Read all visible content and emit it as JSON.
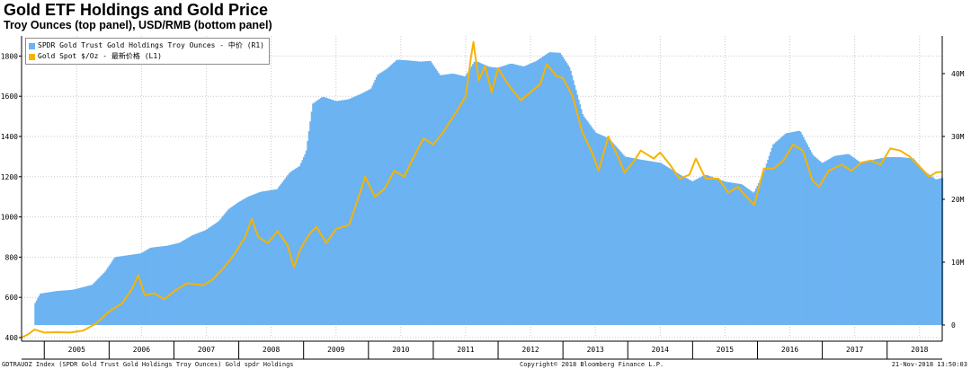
{
  "title": "Gold ETF Holdings and Gold Price",
  "subtitle": "Troy Ounces (top panel), USD/RMB (bottom panel)",
  "footer": {
    "left": "GDTRAUOZ Index (SPDR Gold Trust Gold Holdings Troy Ounces) Gold spdr Holdings",
    "center": "Copyright© 2018 Bloomberg Finance L.P.",
    "right": "21-Nov-2018 13:50:03"
  },
  "colors": {
    "bars": "#6cb3f2",
    "line": "#f5b400",
    "grid": "#c9c9c9"
  },
  "chart_data": {
    "type": "bar",
    "x_label_type": "year",
    "x_tick_labels": [
      "2005",
      "2006",
      "2007",
      "2008",
      "2009",
      "2010",
      "2011",
      "2012",
      "2013",
      "2014",
      "2015",
      "2016",
      "2017",
      "2018"
    ],
    "x_range": [
      2004.65,
      2018.85
    ],
    "y_left": {
      "ticks": [
        "400",
        "600",
        "800",
        "1000",
        "1200",
        "1400",
        "1600",
        "1800"
      ],
      "ylim": [
        400,
        1900
      ]
    },
    "y_right": {
      "ticks": [
        "0",
        "10M",
        "20M",
        "30M",
        "40M"
      ],
      "ylim": [
        -2000000,
        46000000
      ]
    },
    "grid": true,
    "legend_position": "top-left",
    "series": [
      {
        "name": "SPDR Gold Trust Gold Holdings Troy Ounces - 中价 (R1)",
        "type": "bar",
        "axis": "right",
        "points": [
          [
            2004.87,
            3500000
          ],
          [
            2004.95,
            5000000
          ],
          [
            2005.2,
            5400000
          ],
          [
            2005.45,
            5600000
          ],
          [
            2005.75,
            6400000
          ],
          [
            2005.95,
            8500000
          ],
          [
            2006.1,
            10800000
          ],
          [
            2006.3,
            11100000
          ],
          [
            2006.5,
            11400000
          ],
          [
            2006.65,
            12300000
          ],
          [
            2006.9,
            12600000
          ],
          [
            2007.1,
            13100000
          ],
          [
            2007.3,
            14300000
          ],
          [
            2007.5,
            15100000
          ],
          [
            2007.7,
            16500000
          ],
          [
            2007.85,
            18400000
          ],
          [
            2008.0,
            19500000
          ],
          [
            2008.15,
            20400000
          ],
          [
            2008.35,
            21200000
          ],
          [
            2008.6,
            21600000
          ],
          [
            2008.8,
            24300000
          ],
          [
            2008.95,
            25300000
          ],
          [
            2009.05,
            27600000
          ],
          [
            2009.15,
            35200000
          ],
          [
            2009.3,
            36300000
          ],
          [
            2009.5,
            35600000
          ],
          [
            2009.7,
            35900000
          ],
          [
            2009.9,
            36800000
          ],
          [
            2010.05,
            37600000
          ],
          [
            2010.15,
            39800000
          ],
          [
            2010.3,
            40800000
          ],
          [
            2010.45,
            42200000
          ],
          [
            2010.6,
            42100000
          ],
          [
            2010.8,
            41900000
          ],
          [
            2010.95,
            42000000
          ],
          [
            2011.1,
            39700000
          ],
          [
            2011.3,
            40000000
          ],
          [
            2011.5,
            39500000
          ],
          [
            2011.65,
            42000000
          ],
          [
            2011.85,
            41100000
          ],
          [
            2012.0,
            40900000
          ],
          [
            2012.2,
            41600000
          ],
          [
            2012.4,
            41100000
          ],
          [
            2012.6,
            42000000
          ],
          [
            2012.8,
            43400000
          ],
          [
            2012.95,
            43300000
          ],
          [
            2013.1,
            40900000
          ],
          [
            2013.3,
            33400000
          ],
          [
            2013.5,
            30600000
          ],
          [
            2013.7,
            29700000
          ],
          [
            2013.95,
            26800000
          ],
          [
            2014.2,
            26300000
          ],
          [
            2014.5,
            25800000
          ],
          [
            2014.8,
            23900000
          ],
          [
            2015.0,
            22800000
          ],
          [
            2015.2,
            23900000
          ],
          [
            2015.5,
            22800000
          ],
          [
            2015.75,
            22400000
          ],
          [
            2015.95,
            20900000
          ],
          [
            2016.1,
            24100000
          ],
          [
            2016.25,
            28700000
          ],
          [
            2016.45,
            30500000
          ],
          [
            2016.65,
            30900000
          ],
          [
            2016.85,
            27000000
          ],
          [
            2017.0,
            25700000
          ],
          [
            2017.2,
            26900000
          ],
          [
            2017.4,
            27200000
          ],
          [
            2017.6,
            25700000
          ],
          [
            2017.8,
            26300000
          ],
          [
            2018.0,
            26700000
          ],
          [
            2018.2,
            26700000
          ],
          [
            2018.4,
            26500000
          ],
          [
            2018.55,
            24600000
          ],
          [
            2018.75,
            23100000
          ],
          [
            2018.85,
            23400000
          ]
        ]
      },
      {
        "name": "Gold Spot $/Oz - 最新价格 (L1)",
        "type": "line",
        "axis": "left",
        "points": [
          [
            2004.65,
            400
          ],
          [
            2004.75,
            416
          ],
          [
            2004.85,
            440
          ],
          [
            2005.0,
            425
          ],
          [
            2005.2,
            427
          ],
          [
            2005.4,
            425
          ],
          [
            2005.6,
            435
          ],
          [
            2005.8,
            470
          ],
          [
            2006.0,
            530
          ],
          [
            2006.2,
            570
          ],
          [
            2006.35,
            640
          ],
          [
            2006.45,
            710
          ],
          [
            2006.55,
            610
          ],
          [
            2006.7,
            620
          ],
          [
            2006.85,
            590
          ],
          [
            2007.0,
            630
          ],
          [
            2007.2,
            670
          ],
          [
            2007.45,
            660
          ],
          [
            2007.6,
            690
          ],
          [
            2007.75,
            740
          ],
          [
            2007.9,
            800
          ],
          [
            2008.1,
            900
          ],
          [
            2008.2,
            990
          ],
          [
            2008.3,
            900
          ],
          [
            2008.45,
            870
          ],
          [
            2008.6,
            930
          ],
          [
            2008.75,
            860
          ],
          [
            2008.85,
            750
          ],
          [
            2008.95,
            840
          ],
          [
            2009.1,
            920
          ],
          [
            2009.2,
            950
          ],
          [
            2009.35,
            870
          ],
          [
            2009.5,
            940
          ],
          [
            2009.7,
            960
          ],
          [
            2009.85,
            1100
          ],
          [
            2009.95,
            1200
          ],
          [
            2010.1,
            1100
          ],
          [
            2010.25,
            1140
          ],
          [
            2010.4,
            1230
          ],
          [
            2010.55,
            1200
          ],
          [
            2010.7,
            1300
          ],
          [
            2010.85,
            1390
          ],
          [
            2011.0,
            1360
          ],
          [
            2011.15,
            1420
          ],
          [
            2011.35,
            1520
          ],
          [
            2011.5,
            1600
          ],
          [
            2011.58,
            1790
          ],
          [
            2011.62,
            1870
          ],
          [
            2011.7,
            1680
          ],
          [
            2011.8,
            1750
          ],
          [
            2011.9,
            1620
          ],
          [
            2012.0,
            1740
          ],
          [
            2012.15,
            1660
          ],
          [
            2012.35,
            1580
          ],
          [
            2012.5,
            1620
          ],
          [
            2012.65,
            1660
          ],
          [
            2012.75,
            1760
          ],
          [
            2012.9,
            1700
          ],
          [
            2013.0,
            1690
          ],
          [
            2013.15,
            1600
          ],
          [
            2013.3,
            1420
          ],
          [
            2013.45,
            1320
          ],
          [
            2013.55,
            1230
          ],
          [
            2013.7,
            1400
          ],
          [
            2013.85,
            1300
          ],
          [
            2013.95,
            1220
          ],
          [
            2014.1,
            1280
          ],
          [
            2014.2,
            1330
          ],
          [
            2014.4,
            1290
          ],
          [
            2014.5,
            1320
          ],
          [
            2014.65,
            1260
          ],
          [
            2014.8,
            1190
          ],
          [
            2014.95,
            1210
          ],
          [
            2015.05,
            1290
          ],
          [
            2015.2,
            1190
          ],
          [
            2015.4,
            1190
          ],
          [
            2015.55,
            1120
          ],
          [
            2015.7,
            1150
          ],
          [
            2015.8,
            1110
          ],
          [
            2015.95,
            1060
          ],
          [
            2016.1,
            1240
          ],
          [
            2016.25,
            1240
          ],
          [
            2016.4,
            1280
          ],
          [
            2016.55,
            1360
          ],
          [
            2016.7,
            1330
          ],
          [
            2016.85,
            1180
          ],
          [
            2016.95,
            1150
          ],
          [
            2017.1,
            1230
          ],
          [
            2017.3,
            1260
          ],
          [
            2017.45,
            1230
          ],
          [
            2017.6,
            1270
          ],
          [
            2017.75,
            1280
          ],
          [
            2017.9,
            1260
          ],
          [
            2018.05,
            1340
          ],
          [
            2018.2,
            1330
          ],
          [
            2018.35,
            1300
          ],
          [
            2018.5,
            1250
          ],
          [
            2018.65,
            1200
          ],
          [
            2018.75,
            1220
          ],
          [
            2018.85,
            1225
          ]
        ]
      }
    ]
  }
}
